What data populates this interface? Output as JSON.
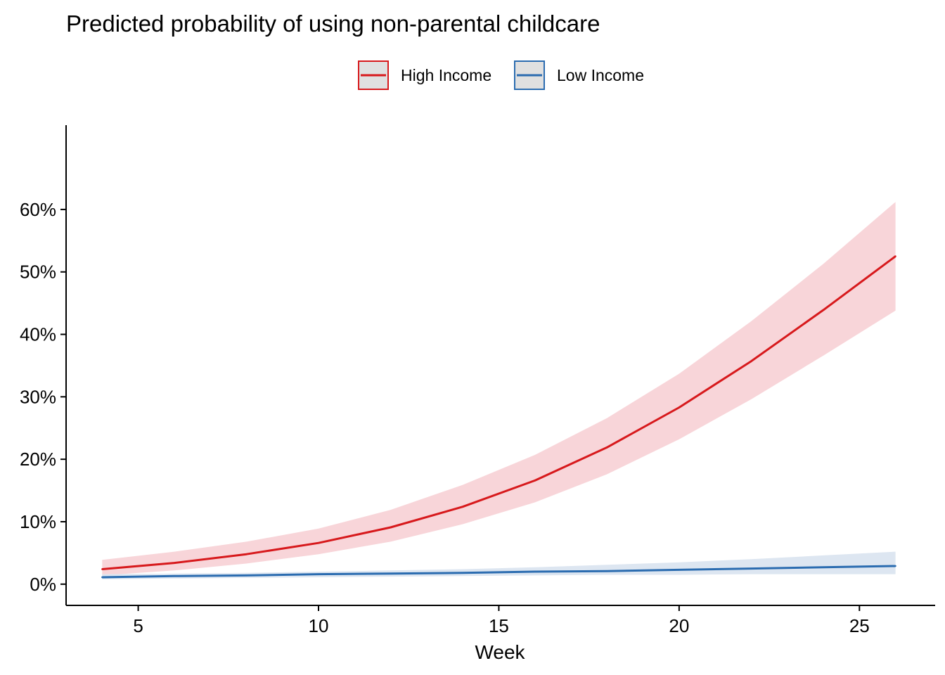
{
  "chart_data": {
    "type": "line",
    "title": "Predicted probability of using non-parental childcare",
    "xlabel": "Week",
    "ylabel": "",
    "xlim": [
      3,
      27.1
    ],
    "ylim": [
      -0.034,
      0.735
    ],
    "x_ticks": [
      5,
      10,
      15,
      20,
      25
    ],
    "y_ticks": [
      0,
      0.1,
      0.2,
      0.3,
      0.4,
      0.5,
      0.6
    ],
    "y_tick_labels": [
      "0%",
      "10%",
      "20%",
      "30%",
      "40%",
      "50%",
      "60%"
    ],
    "grid": false,
    "legend": {
      "position": "top",
      "entries": [
        "High Income",
        "Low Income"
      ]
    },
    "x": [
      4,
      6,
      8,
      10,
      12,
      14,
      16,
      18,
      20,
      22,
      24,
      26
    ],
    "series": [
      {
        "name": "High Income",
        "color": "#d7191c",
        "band_color": "#f8d5d9",
        "values": [
          0.024,
          0.034,
          0.048,
          0.066,
          0.091,
          0.124,
          0.166,
          0.219,
          0.283,
          0.357,
          0.439,
          0.525
        ],
        "lower": [
          0.014,
          0.022,
          0.033,
          0.048,
          0.068,
          0.096,
          0.131,
          0.176,
          0.232,
          0.296,
          0.366,
          0.438
        ],
        "upper": [
          0.039,
          0.052,
          0.068,
          0.089,
          0.119,
          0.159,
          0.207,
          0.266,
          0.337,
          0.421,
          0.513,
          0.612
        ]
      },
      {
        "name": "Low Income",
        "color": "#2b6cb0",
        "band_color": "#dde6f1",
        "values": [
          0.011,
          0.013,
          0.014,
          0.016,
          0.017,
          0.018,
          0.02,
          0.021,
          0.023,
          0.025,
          0.027,
          0.029
        ],
        "lower": [
          0.008,
          0.009,
          0.01,
          0.011,
          0.012,
          0.013,
          0.014,
          0.015,
          0.015,
          0.016,
          0.016,
          0.016
        ],
        "upper": [
          0.016,
          0.017,
          0.018,
          0.02,
          0.022,
          0.024,
          0.027,
          0.031,
          0.035,
          0.04,
          0.046,
          0.052
        ]
      }
    ]
  }
}
